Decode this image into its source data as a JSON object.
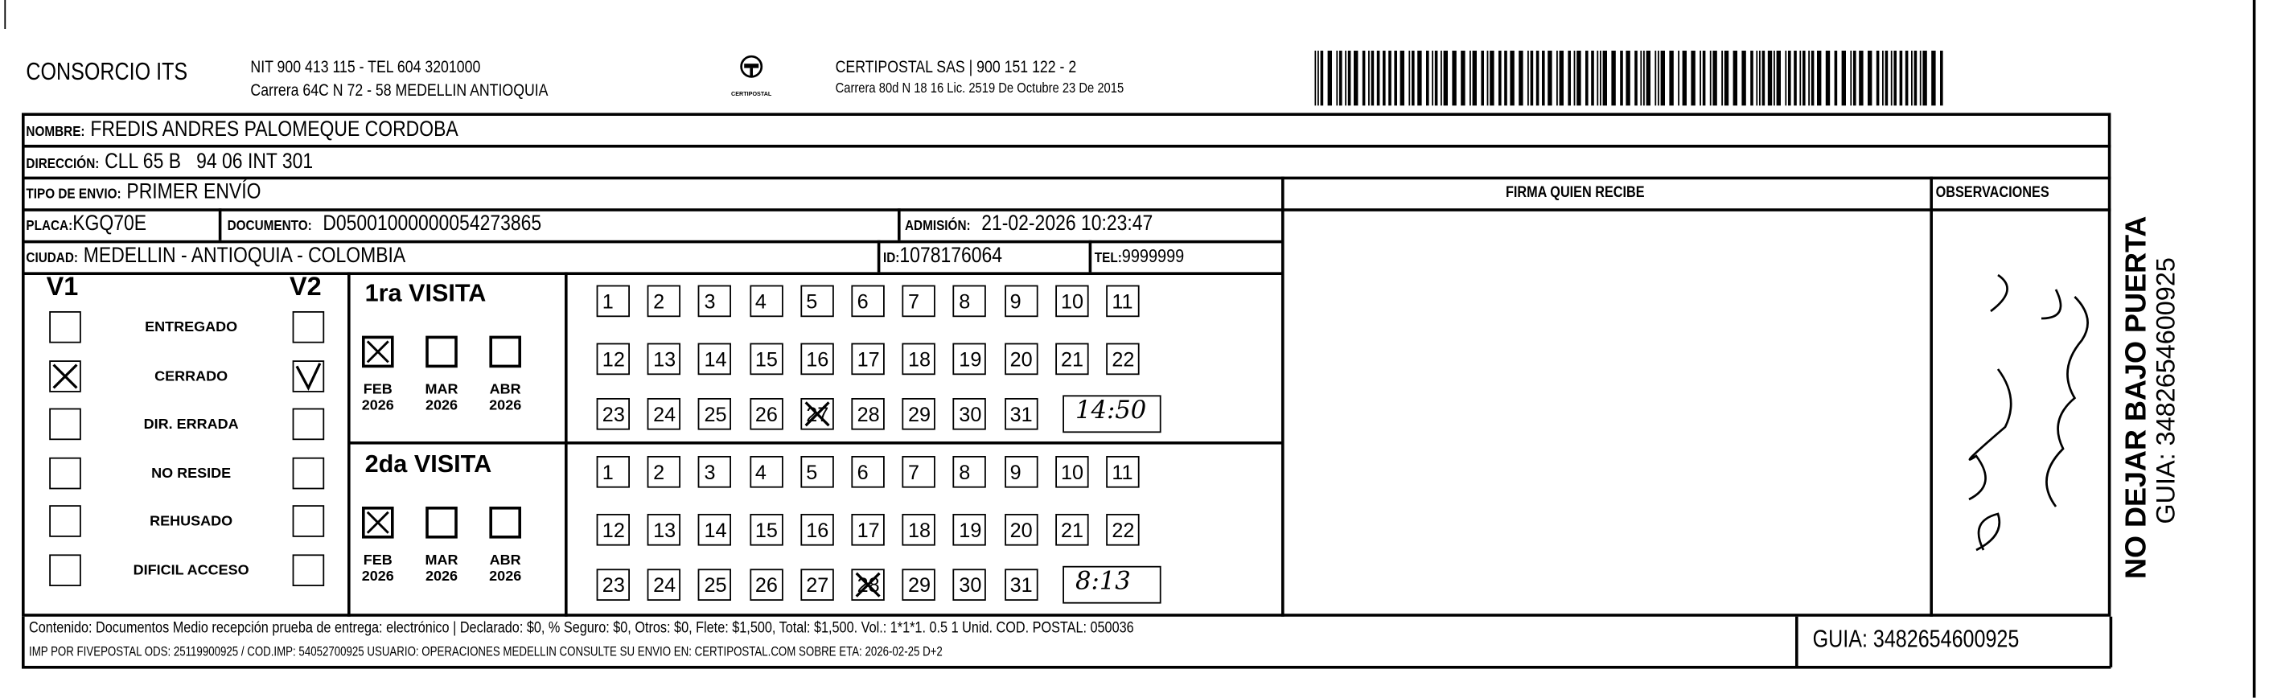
{
  "header": {
    "company": "CONSORCIO ITS",
    "company_line1": "NIT 900 413 115 - TEL 604 3201000",
    "company_line2": "Carrera 64C N 72 - 58 MEDELLIN ANTIOQUIA",
    "logo_text": "CERTIPOSTAL",
    "carrier_line1": "CERTIPOSTAL SAS | 900 151 122 - 2",
    "carrier_line2": "Carrera 80d N 18 16  Lic. 2519 De Octubre 23 De 2015",
    "barcode_value": "3482654600925"
  },
  "fields": {
    "nombre_label": "NOMBRE:",
    "nombre": "FREDIS ANDRES PALOMEQUE CORDOBA",
    "direccion_label": "DIRECCIÓN:",
    "direccion": "CLL 65 B   94 06 INT 301",
    "tipo_label": "TIPO DE ENVIO:",
    "tipo": "PRIMER ENVÍO",
    "placa_label": "PLACA:",
    "placa": "KGQ70E",
    "documento_label": "DOCUMENTO:",
    "documento": "D05001000000054273865",
    "admision_label": "ADMISIÓN:",
    "admision": "21-02-2026 10:23:47",
    "ciudad_label": "CIUDAD:",
    "ciudad": "MEDELLIN - ANTIOQUIA - COLOMBIA",
    "id_label": "ID:",
    "id": "1078176064",
    "tel_label": "TEL:",
    "tel": "9999999",
    "firma_label": "FIRMA QUIEN RECIBE",
    "observaciones_label": "OBSERVACIONES"
  },
  "status": {
    "v1_label": "V1",
    "v2_label": "V2",
    "options": [
      {
        "label": "ENTREGADO",
        "v1": false,
        "v2": false
      },
      {
        "label": "CERRADO",
        "v1": true,
        "v2": true
      },
      {
        "label": "DIR. ERRADA",
        "v1": false,
        "v2": false
      },
      {
        "label": "NO RESIDE",
        "v1": false,
        "v2": false
      },
      {
        "label": "REHUSADO",
        "v1": false,
        "v2": false
      },
      {
        "label": "DIFICIL ACCESO",
        "v1": false,
        "v2": false
      }
    ]
  },
  "visits": [
    {
      "title": "1ra VISITA",
      "months": [
        {
          "m": "FEB",
          "y": "2026",
          "checked": true
        },
        {
          "m": "MAR",
          "y": "2026",
          "checked": false
        },
        {
          "m": "ABR",
          "y": "2026",
          "checked": false
        }
      ],
      "marked_day": 27,
      "time": "14:50"
    },
    {
      "title": "2da VISITA",
      "months": [
        {
          "m": "FEB",
          "y": "2026",
          "checked": true
        },
        {
          "m": "MAR",
          "y": "2026",
          "checked": false
        },
        {
          "m": "ABR",
          "y": "2026",
          "checked": false
        }
      ],
      "marked_day": 28,
      "time": "8:13"
    }
  ],
  "footer": {
    "line1": "Contenido: Documentos Medio recepción prueba de entrega: electrónico | Declarado: $0, % Seguro: $0, Otros: $0, Flete: $1,500, Total: $1,500. Vol.: 1*1*1. 0.5  1 Unid. COD. POSTAL: 050036",
    "line2": "IMP POR FIVEPOSTAL ODS: 25119900925 / COD.IMP: 54052700925 USUARIO: OPERACIONES MEDELLIN CONSULTE SU ENVIO EN: CERTIPOSTAL.COM SOBRE ETA: 2026-02-25 D+2",
    "guia": "GUIA: 3482654600925"
  },
  "side": {
    "warning": "NO DEJAR BAJO PUERTA",
    "guia": "GUIA: 3482654600925"
  }
}
